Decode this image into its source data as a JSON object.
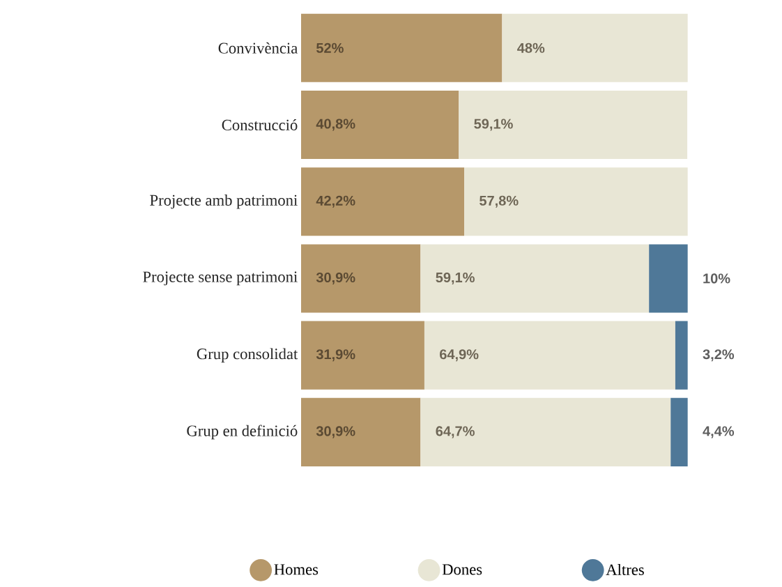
{
  "chart_data": {
    "type": "bar",
    "orientation": "horizontal",
    "stacked": true,
    "tick_labels": "y",
    "legend": "bottom",
    "categories": [
      "Convivència",
      "Construcció",
      "Projecte amb patrimoni",
      "Projecte sense patrimoni",
      "Grup consolidat",
      "Grup en definició"
    ],
    "series": [
      {
        "name": "Homes",
        "color": "#b6986a",
        "values": [
          52,
          40.8,
          42.2,
          30.9,
          31.9,
          30.9
        ],
        "value_labels": [
          "52%",
          "40,8%",
          "42,2%",
          "30,9%",
          "31,9%",
          "30,9%"
        ]
      },
      {
        "name": "Dones",
        "color": "#e8e6d5",
        "values": [
          48,
          59.1,
          57.8,
          59.1,
          64.9,
          64.7
        ],
        "value_labels": [
          "48%",
          "59,1%",
          "57,8%",
          "59,1%",
          "64,9%",
          "64,7%"
        ]
      },
      {
        "name": "Altres",
        "color": "#4f7898",
        "values": [
          null,
          null,
          null,
          10,
          3.2,
          4.4
        ],
        "value_labels": [
          null,
          null,
          null,
          "10%",
          "3,2%",
          "4,4%"
        ]
      }
    ]
  }
}
